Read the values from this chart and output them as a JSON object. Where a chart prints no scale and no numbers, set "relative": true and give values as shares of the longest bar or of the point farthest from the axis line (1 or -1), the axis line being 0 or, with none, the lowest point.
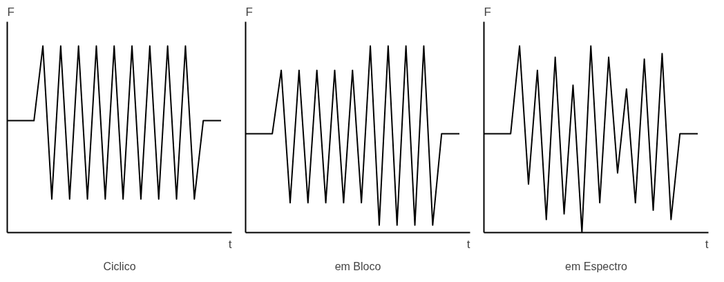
{
  "chart_data": [
    {
      "type": "line",
      "relative": true,
      "title": "Ciclico",
      "xlabel": "t",
      "ylabel": "F",
      "tick_labels": false,
      "color": "#000000",
      "categories": [
        null,
        null,
        null,
        null,
        null,
        null,
        null,
        null,
        null,
        null,
        null,
        null,
        null,
        null,
        null,
        null,
        null,
        null,
        null,
        null,
        null,
        null,
        null,
        null,
        null
      ],
      "values": [
        0.6,
        0.6,
        0.6,
        0.6,
        1,
        0.18,
        1,
        0.18,
        1,
        0.18,
        1,
        0.18,
        1,
        0.18,
        1,
        0.18,
        1,
        0.18,
        1,
        0.18,
        1,
        0.18,
        0.6,
        0.6,
        0.6
      ]
    },
    {
      "type": "line",
      "relative": true,
      "title": "em Bloco",
      "xlabel": "t",
      "ylabel": "F",
      "tick_labels": false,
      "color": "#000000",
      "categories": [
        null,
        null,
        null,
        null,
        null,
        null,
        null,
        null,
        null,
        null,
        null,
        null,
        null,
        null,
        null,
        null,
        null,
        null,
        null,
        null,
        null,
        null,
        null,
        null,
        null
      ],
      "values": [
        0.53,
        0.53,
        0.53,
        0.53,
        0.87,
        0.16,
        0.87,
        0.16,
        0.87,
        0.16,
        0.87,
        0.16,
        0.87,
        0.16,
        1,
        0.04,
        1,
        0.04,
        1,
        0.04,
        1,
        0.04,
        0.53,
        0.53,
        0.53
      ]
    },
    {
      "type": "line",
      "relative": true,
      "title": "em Espectro",
      "xlabel": "t",
      "ylabel": "F",
      "tick_labels": false,
      "color": "#000000",
      "categories": [
        null,
        null,
        null,
        null,
        null,
        null,
        null,
        null,
        null,
        null,
        null,
        null,
        null,
        null,
        null,
        null,
        null,
        null,
        null,
        null,
        null,
        null,
        null,
        null,
        null
      ],
      "values": [
        0.53,
        0.53,
        0.53,
        0.53,
        1,
        0.26,
        0.87,
        0.07,
        0.94,
        0.1,
        0.79,
        0,
        1,
        0.16,
        0.94,
        0.32,
        0.77,
        0.16,
        0.93,
        0.12,
        0.96,
        0.07,
        0.53,
        0.53,
        0.53
      ]
    }
  ]
}
